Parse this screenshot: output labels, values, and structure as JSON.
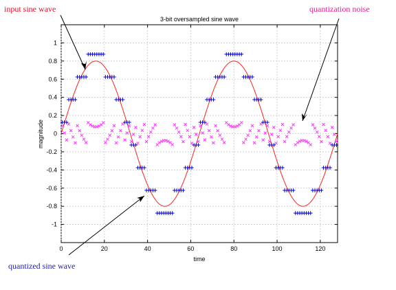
{
  "annotations": {
    "input_label": "input sine wave",
    "noise_label": "quantization noise",
    "quantized_label": "quantized sine wave"
  },
  "colors": {
    "input_wave": "#ff2020",
    "quantized": "#0000cc",
    "noise": "#ff33ff",
    "annotation_input": "#e8102a",
    "annotation_noise": "#e81b8f",
    "annotation_quantized": "#1f1fae"
  },
  "chart_data": {
    "type": "line",
    "title": "3-bit oversampled sine wave",
    "xlabel": "time",
    "ylabel": "magnitude",
    "xlim": [
      0,
      128
    ],
    "ylim": [
      -1.2,
      1.2
    ],
    "xticks": [
      0,
      20,
      40,
      60,
      80,
      100,
      120
    ],
    "yticks": [
      1,
      0.8,
      0.6,
      0.4,
      0.2,
      0,
      -0.2,
      -0.4,
      -0.6,
      -0.8,
      -1
    ],
    "grid": true,
    "sine": {
      "amplitude": 0.8,
      "period": 64,
      "samples": 128
    },
    "quantization": {
      "bits": 3,
      "levels": [
        -0.875,
        -0.625,
        -0.375,
        -0.125,
        0.125,
        0.375,
        0.625,
        0.875
      ]
    },
    "series": [
      {
        "marker": "line"
      },
      {
        "marker": "plus"
      },
      {
        "marker": "x"
      }
    ]
  }
}
